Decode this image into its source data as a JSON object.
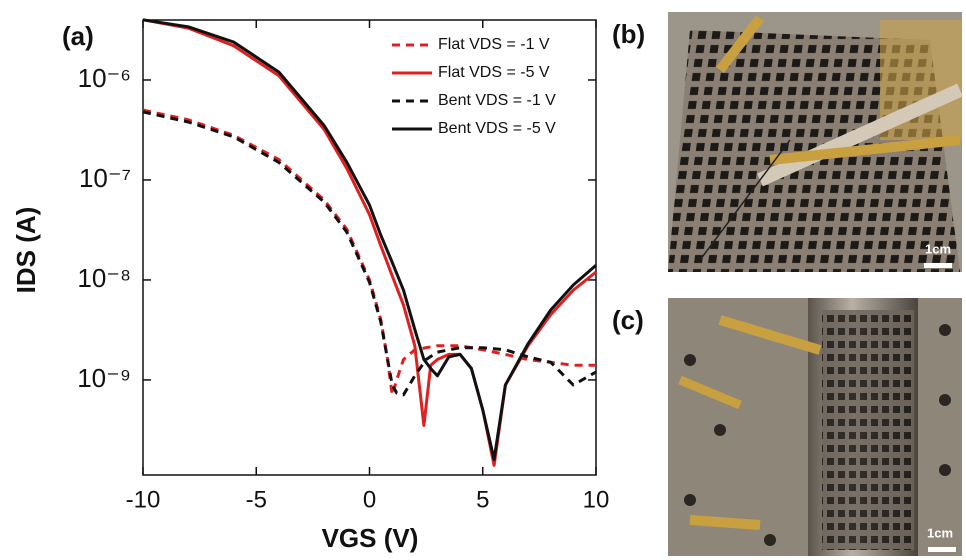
{
  "chart_data": {
    "type": "line",
    "title": "(a)",
    "x_label": "VGS (V)",
    "y_label": "IDS (A)",
    "ylog": true,
    "ylim": [
      1.12e-10,
      3.98e-06
    ],
    "xlim": [
      -10,
      10
    ],
    "xticks": [
      -10,
      -5,
      0,
      5,
      10
    ],
    "yticks": [
      {
        "value": 1e-06,
        "label": "10⁻⁶"
      },
      {
        "value": 1e-07,
        "label": "10⁻⁷"
      },
      {
        "value": 1e-08,
        "label": "10⁻⁸"
      },
      {
        "value": 1e-09,
        "label": "10⁻⁹"
      }
    ],
    "legend": "top-right",
    "series": [
      {
        "name": "Flat VDS = -1 V",
        "color": "#e02020",
        "dash": true,
        "x": [
          -10,
          -8,
          -6,
          -4,
          -2,
          -1,
          0,
          0.5,
          0.8,
          1,
          1.2,
          1.5,
          2,
          2.5,
          3,
          4,
          5,
          6,
          7,
          8,
          9,
          10
        ],
        "values": [
          5e-07,
          4e-07,
          2.8e-07,
          1.6e-07,
          6.3e-08,
          3.2e-08,
          1e-08,
          4e-09,
          1.6e-09,
          7.1e-10,
          1e-09,
          1.6e-09,
          2e-09,
          2.1e-09,
          2.2e-09,
          2.2e-09,
          2e-09,
          1.8e-09,
          1.6e-09,
          1.5e-09,
          1.4e-09,
          1.4e-09
        ]
      },
      {
        "name": "Flat VDS = -5 V",
        "color": "#e02020",
        "dash": false,
        "x": [
          -10,
          -8,
          -6,
          -4,
          -2,
          -1,
          0,
          0.5,
          1,
          1.5,
          2,
          2.4,
          2.7,
          3,
          3.5,
          4,
          4.5,
          5,
          5.5,
          6,
          7,
          8,
          9,
          10
        ],
        "values": [
          4e-06,
          3.3e-06,
          2.2e-06,
          1.1e-06,
          3.2e-07,
          1.3e-07,
          4.5e-08,
          2.2e-08,
          1.1e-08,
          5.6e-09,
          2.2e-09,
          3.5e-10,
          1.4e-09,
          1.6e-09,
          1.8e-09,
          1.8e-09,
          1.3e-09,
          5e-10,
          1.4e-10,
          8.9e-10,
          2.2e-09,
          4.5e-09,
          7.9e-09,
          1.2e-08
        ]
      },
      {
        "name": "Bent VDS = -1 V",
        "color": "#111111",
        "dash": true,
        "x": [
          -10,
          -8,
          -6,
          -4,
          -2,
          -1,
          0,
          0.5,
          0.8,
          1,
          1.2,
          1.5,
          2,
          2.5,
          3,
          4,
          5,
          6,
          7,
          8,
          9,
          10
        ],
        "values": [
          4.8e-07,
          3.8e-07,
          2.7e-07,
          1.5e-07,
          6e-08,
          3e-08,
          9.5e-09,
          3.8e-09,
          1.6e-09,
          8.9e-10,
          7.4e-10,
          7.1e-10,
          1.1e-09,
          1.6e-09,
          1.9e-09,
          2.1e-09,
          2.1e-09,
          2e-09,
          1.7e-09,
          1.5e-09,
          8.9e-10,
          1.2e-09
        ]
      },
      {
        "name": "Bent VDS = -5 V",
        "color": "#111111",
        "dash": false,
        "x": [
          -10,
          -8,
          -6,
          -4,
          -2,
          -1,
          0,
          0.5,
          1,
          1.5,
          2,
          2.4,
          2.7,
          3,
          3.5,
          4,
          4.5,
          5,
          5.5,
          6,
          7,
          8,
          9,
          10
        ],
        "values": [
          4e-06,
          3.4e-06,
          2.4e-06,
          1.2e-06,
          3.5e-07,
          1.5e-07,
          5.6e-08,
          2.8e-08,
          1.5e-08,
          7.9e-09,
          3.2e-09,
          1.6e-09,
          1.3e-09,
          1.1e-09,
          1.7e-09,
          1.8e-09,
          1.3e-09,
          5e-10,
          1.6e-10,
          8.9e-10,
          2.3e-09,
          5e-09,
          8.9e-09,
          1.4e-08
        ]
      }
    ]
  },
  "panels": {
    "b": {
      "label": "(b)",
      "scale": "1cm"
    },
    "c": {
      "label": "(c)",
      "scale": "1cm"
    }
  }
}
